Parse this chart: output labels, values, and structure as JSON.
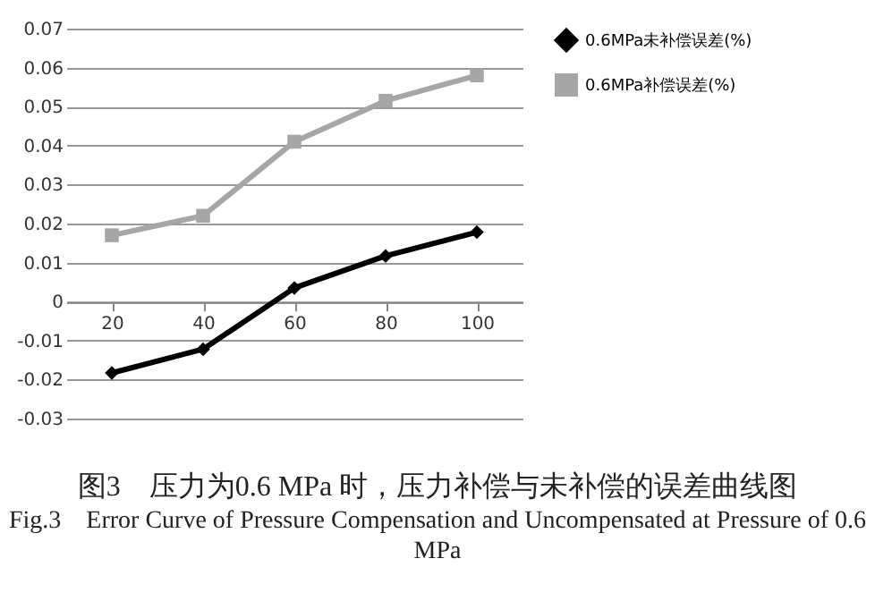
{
  "chart_data": {
    "type": "line",
    "title": "图3　压力为0.6 MPa 时，压力补偿与未补偿的误差曲线图",
    "subtitle": "Fig.3　Error Curve of Pressure Compensation and Uncompensated at Pressure of 0.6 MPa",
    "categories": [
      "20",
      "40",
      "60",
      "80",
      "100"
    ],
    "series": [
      {
        "name": "0.6MPa未补偿误差(%)",
        "color": "#000000",
        "marker": "diamond",
        "values": [
          -0.0183,
          -0.0122,
          0.0035,
          0.0117,
          0.0178
        ]
      },
      {
        "name": "0.6MPa补偿误差(%)",
        "color": "#a6a6a6",
        "marker": "square",
        "values": [
          0.017,
          0.022,
          0.041,
          0.0515,
          0.058
        ]
      }
    ],
    "ylim": [
      -0.03,
      0.07
    ],
    "yticks": [
      -0.03,
      -0.02,
      -0.01,
      0,
      0.01,
      0.02,
      0.03,
      0.04,
      0.05,
      0.06,
      0.07
    ],
    "grid": "y",
    "legend": "right"
  }
}
